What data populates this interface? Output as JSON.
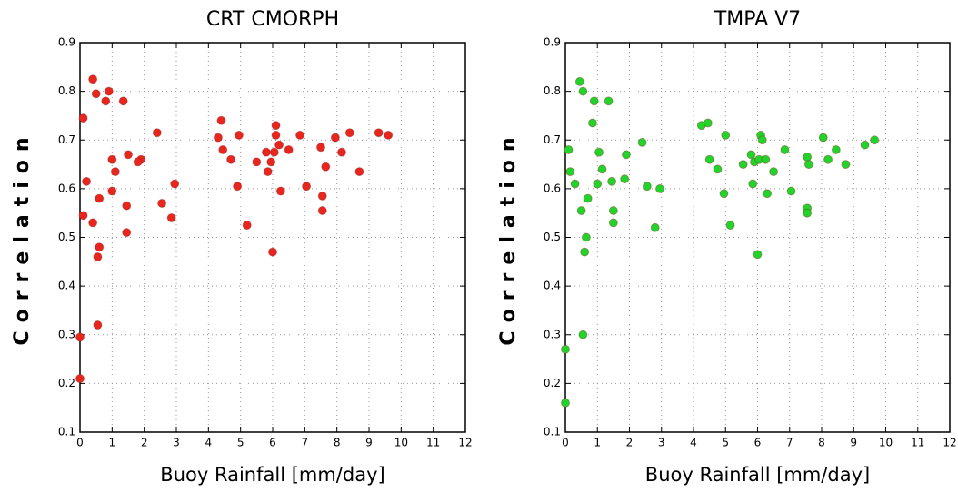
{
  "chart_data": [
    {
      "type": "scatter",
      "title": "CRT  CMORPH",
      "x_label": "Buoy Rainfall [mm/day]",
      "y_label": "Correlation",
      "color": "#e8261d",
      "xlim": [
        0,
        12
      ],
      "ylim": [
        0.1,
        0.9
      ],
      "xticks": [
        0,
        1,
        2,
        3,
        4,
        5,
        6,
        7,
        8,
        9,
        10,
        11,
        12
      ],
      "yticks": [
        0.1,
        0.2,
        0.3,
        0.4,
        0.5,
        0.6,
        0.7,
        0.8,
        0.9
      ],
      "grid": true,
      "x": [
        0.1,
        0.1,
        0.2,
        0.0,
        0.0,
        0.4,
        0.5,
        0.4,
        0.6,
        0.55,
        0.6,
        0.55,
        0.8,
        0.9,
        1.0,
        1.0,
        1.1,
        1.35,
        1.45,
        1.5,
        1.45,
        1.9,
        1.8,
        2.4,
        2.55,
        2.85,
        2.95,
        4.3,
        4.4,
        4.45,
        4.7,
        4.95,
        4.9,
        5.2,
        5.5,
        5.8,
        5.85,
        5.95,
        6.0,
        6.05,
        6.1,
        6.1,
        6.2,
        6.25,
        6.5,
        6.85,
        7.05,
        7.5,
        7.55,
        7.55,
        7.65,
        7.95,
        8.15,
        8.4,
        8.7,
        9.3,
        9.6
      ],
      "y": [
        0.745,
        0.545,
        0.615,
        0.295,
        0.21,
        0.825,
        0.795,
        0.53,
        0.48,
        0.46,
        0.58,
        0.32,
        0.78,
        0.8,
        0.595,
        0.66,
        0.635,
        0.78,
        0.565,
        0.67,
        0.51,
        0.66,
        0.655,
        0.715,
        0.57,
        0.54,
        0.61,
        0.705,
        0.74,
        0.68,
        0.66,
        0.71,
        0.605,
        0.525,
        0.655,
        0.675,
        0.635,
        0.655,
        0.47,
        0.675,
        0.71,
        0.73,
        0.69,
        0.595,
        0.68,
        0.71,
        0.605,
        0.685,
        0.585,
        0.555,
        0.645,
        0.705,
        0.675,
        0.715,
        0.635,
        0.715,
        0.71
      ]
    },
    {
      "type": "scatter",
      "title": "TMPA  V7",
      "x_label": "Buoy Rainfall [mm/day]",
      "y_label": "Correlation",
      "color": "#22d32a",
      "xlim": [
        0,
        12
      ],
      "ylim": [
        0.1,
        0.9
      ],
      "xticks": [
        0,
        1,
        2,
        3,
        4,
        5,
        6,
        7,
        8,
        9,
        10,
        11,
        12
      ],
      "yticks": [
        0.1,
        0.2,
        0.3,
        0.4,
        0.5,
        0.6,
        0.7,
        0.8,
        0.9
      ],
      "grid": true,
      "x": [
        0.0,
        0.0,
        0.1,
        0.15,
        0.3,
        0.45,
        0.55,
        0.5,
        0.6,
        0.55,
        0.65,
        0.7,
        0.85,
        0.9,
        1.0,
        1.05,
        1.15,
        1.35,
        1.45,
        1.5,
        1.5,
        1.85,
        1.9,
        2.4,
        2.55,
        2.8,
        2.95,
        4.25,
        4.45,
        4.5,
        4.75,
        5.0,
        4.95,
        5.15,
        5.55,
        5.8,
        5.85,
        5.9,
        6.0,
        6.05,
        6.1,
        6.15,
        6.25,
        6.3,
        6.5,
        6.85,
        7.05,
        7.55,
        7.6,
        7.55,
        7.55,
        8.05,
        8.2,
        8.45,
        8.75,
        9.35,
        9.65
      ],
      "y": [
        0.27,
        0.16,
        0.68,
        0.635,
        0.61,
        0.82,
        0.8,
        0.555,
        0.47,
        0.3,
        0.5,
        0.58,
        0.735,
        0.78,
        0.61,
        0.675,
        0.64,
        0.78,
        0.615,
        0.555,
        0.53,
        0.62,
        0.67,
        0.695,
        0.605,
        0.52,
        0.6,
        0.73,
        0.735,
        0.66,
        0.64,
        0.71,
        0.59,
        0.525,
        0.65,
        0.67,
        0.61,
        0.655,
        0.465,
        0.66,
        0.71,
        0.7,
        0.66,
        0.59,
        0.635,
        0.68,
        0.595,
        0.665,
        0.65,
        0.56,
        0.55,
        0.705,
        0.66,
        0.68,
        0.65,
        0.69,
        0.7
      ]
    }
  ]
}
